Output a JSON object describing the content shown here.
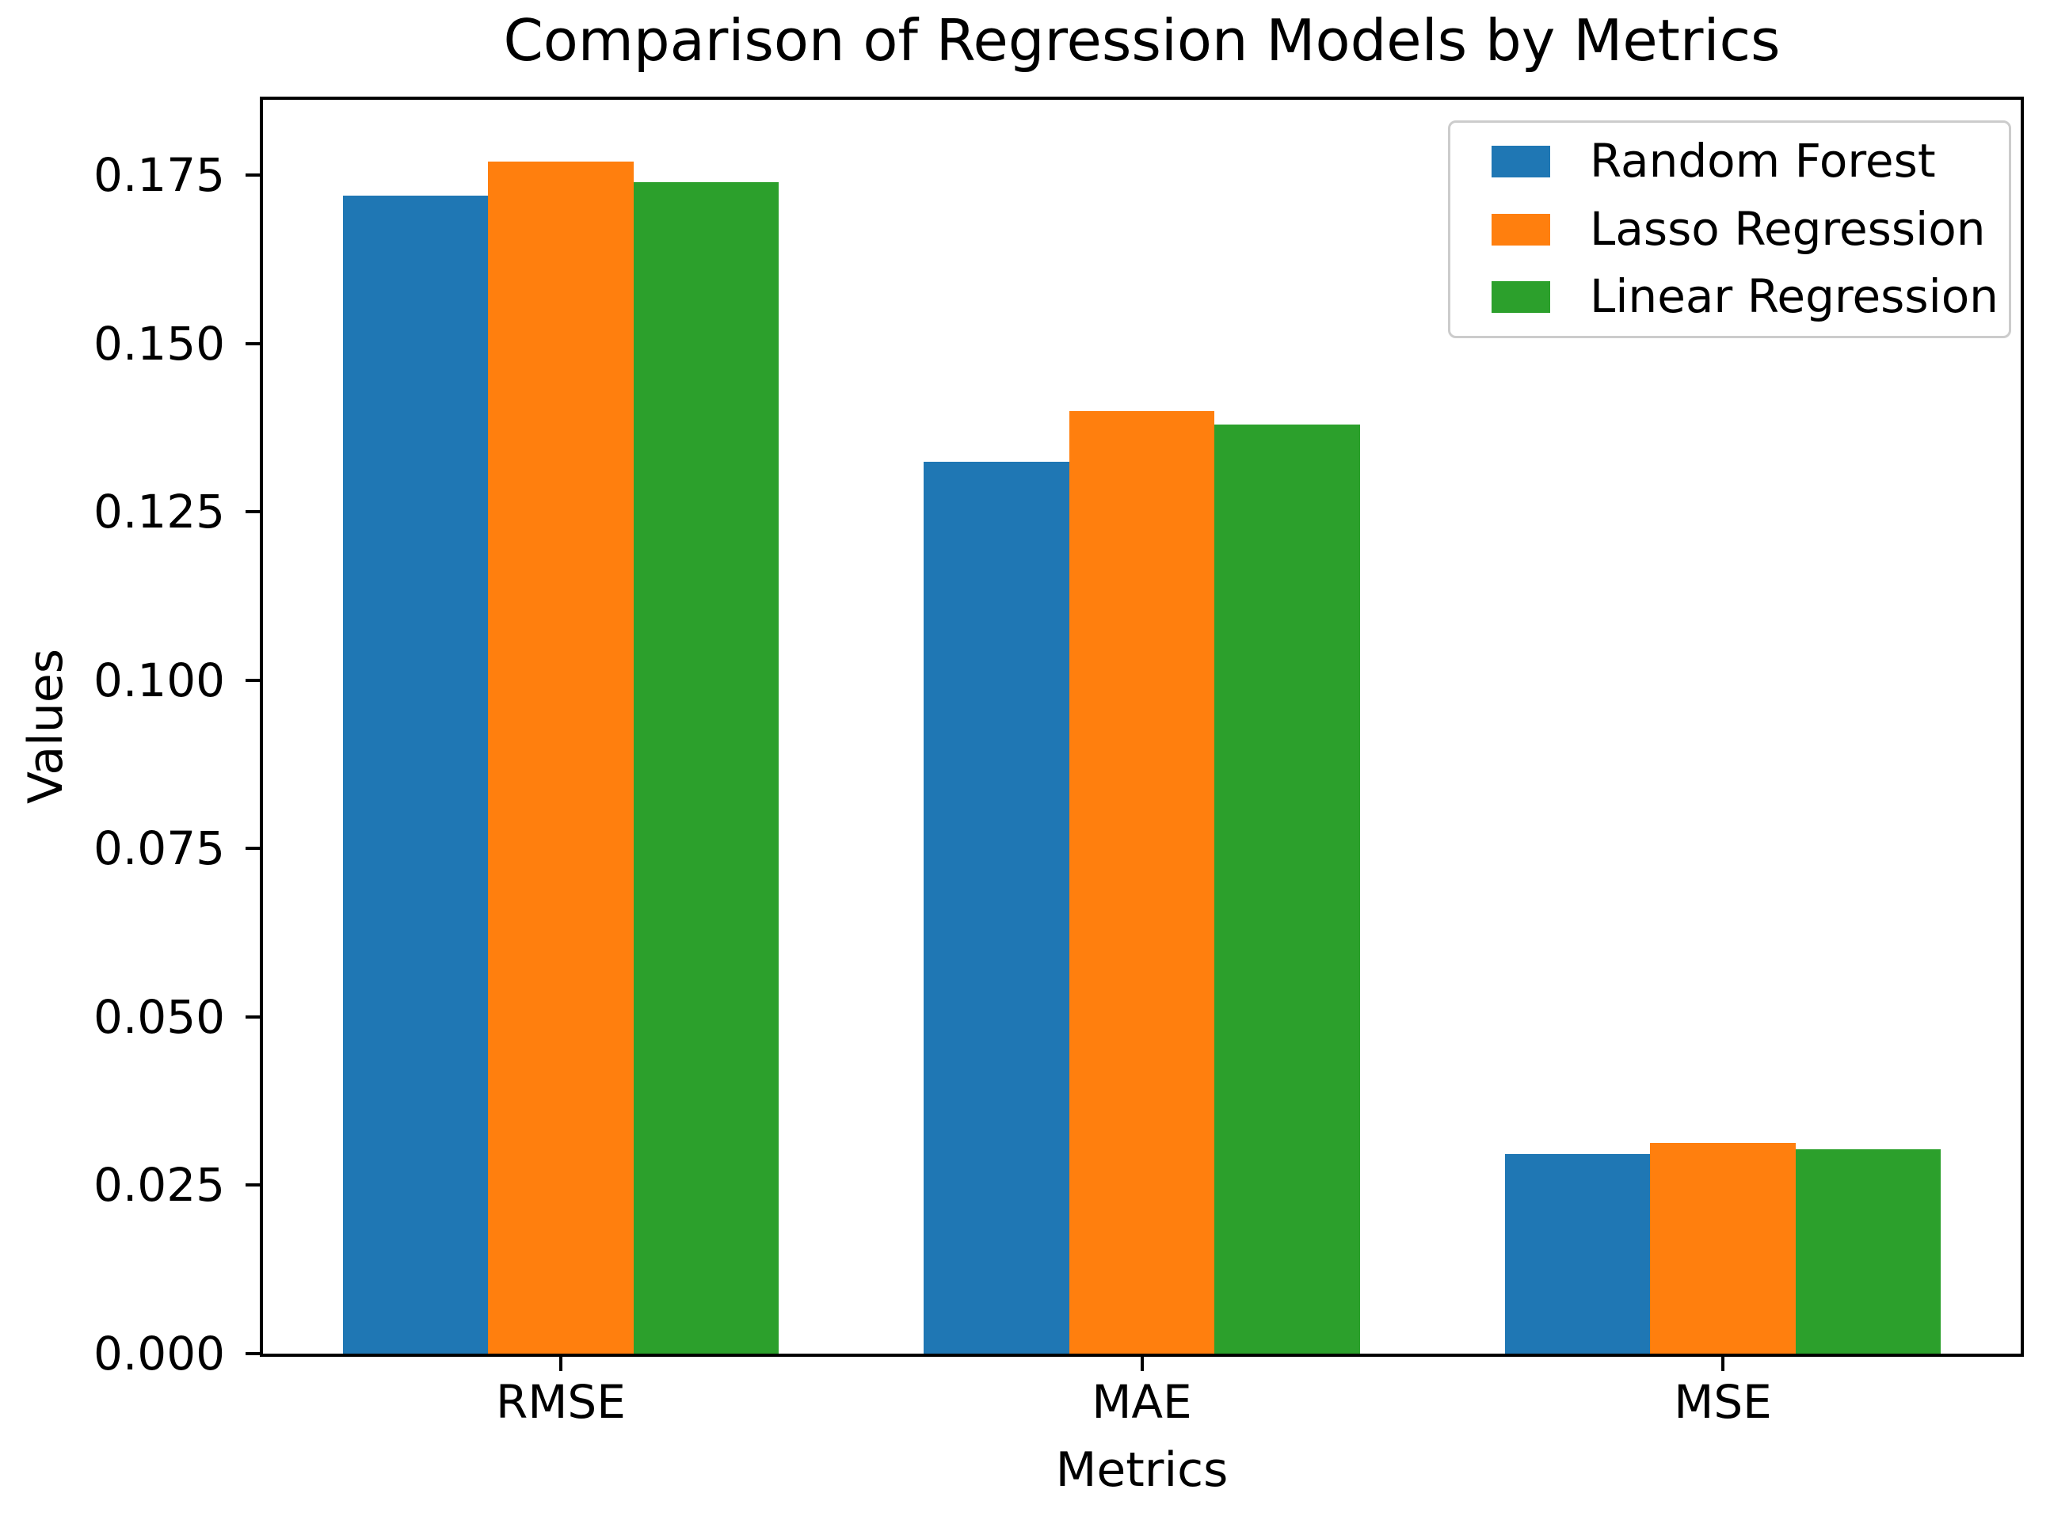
{
  "figure": {
    "title": "Comparison of Regression Models by Metrics",
    "xlabel": "Metrics",
    "ylabel": "Values"
  },
  "chart_data": {
    "type": "bar",
    "title": "Comparison of Regression Models by Metrics",
    "xlabel": "Metrics",
    "ylabel": "Values",
    "categories": [
      "RMSE",
      "MAE",
      "MSE"
    ],
    "series": [
      {
        "name": "Random Forest",
        "color": "#1f77b4",
        "values": [
          0.172,
          0.1325,
          0.0296
        ]
      },
      {
        "name": "Lasso Regression",
        "color": "#ff7f0e",
        "values": [
          0.177,
          0.14,
          0.0313
        ]
      },
      {
        "name": "Linear Regression",
        "color": "#2ca02c",
        "values": [
          0.174,
          0.138,
          0.0303
        ]
      }
    ],
    "bar_width": 0.25,
    "bar_offsets": [
      -0.25,
      0,
      0.25
    ],
    "xlim": [
      -0.5125,
      2.5125
    ],
    "ylim": [
      0,
      0.18623
    ],
    "yticks": {
      "values": [
        0,
        0.025,
        0.05,
        0.075,
        0.1,
        0.125,
        0.15,
        0.175
      ],
      "labels": [
        "0.000",
        "0.025",
        "0.050",
        "0.075",
        "0.100",
        "0.125",
        "0.150",
        "0.175"
      ]
    },
    "grid": false,
    "legend": {
      "position": "upper right",
      "entries": [
        "Random Forest",
        "Lasso Regression",
        "Linear Regression"
      ]
    }
  }
}
